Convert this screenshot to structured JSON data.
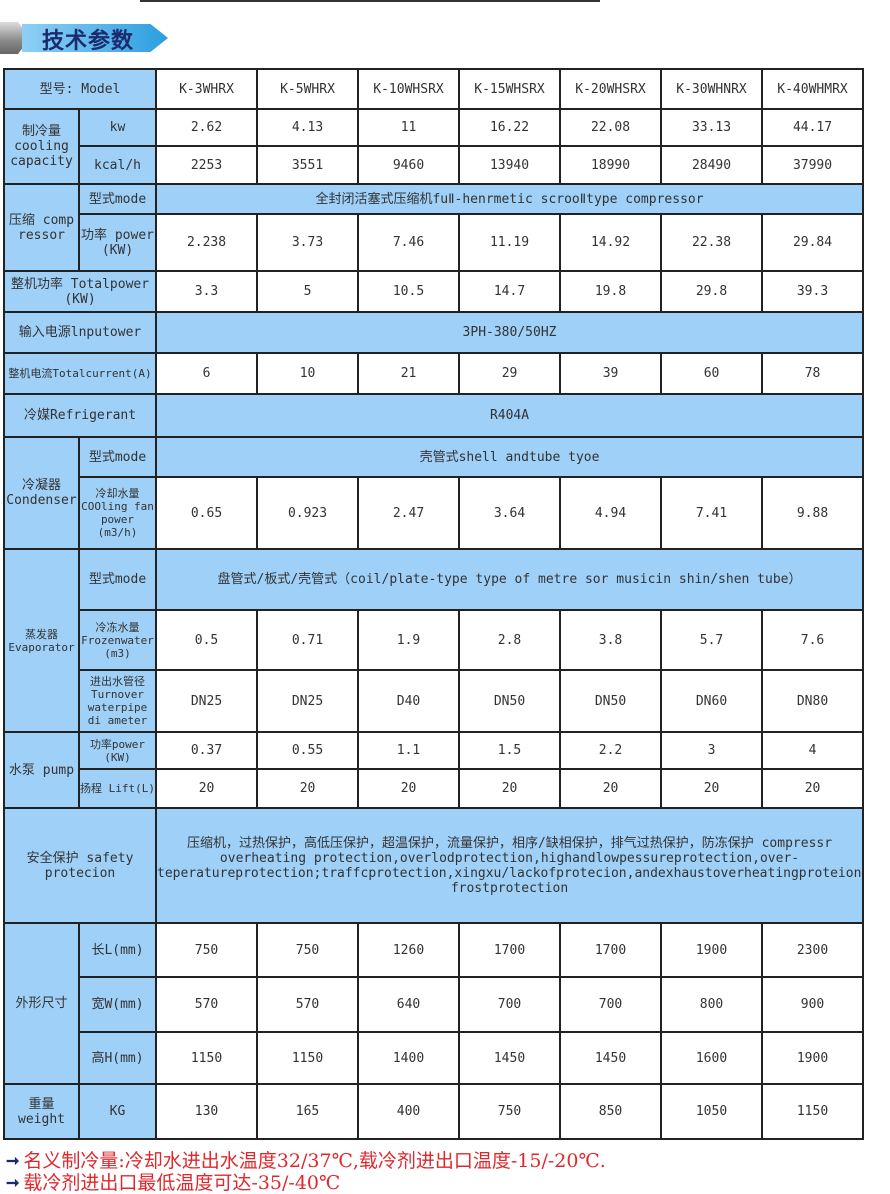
{
  "section_title": "技术参数",
  "header_label": "型号: Model",
  "models": [
    "K-3WHRX",
    "K-5WHRX",
    "K-10WHSRX",
    "K-15WHSRX",
    "K-20WHSRX",
    "K-30WHNRX",
    "K-40WHMRX"
  ],
  "cooling": {
    "label": "制冷量 cooling capacity",
    "unit_kw": "kw",
    "unit_kcal": "kcal/h",
    "kw": [
      "2.62",
      "4.13",
      "11",
      "16.22",
      "22.08",
      "33.13",
      "44.17"
    ],
    "kcal": [
      "2253",
      "3551",
      "9460",
      "13940",
      "18990",
      "28490",
      "37990"
    ]
  },
  "compressor": {
    "label": "压缩 comp ressor",
    "mode_label": "型式mode",
    "mode_value": "全封闭活塞式压缩机fuⅡ-henrmetic scrooⅡtype compressor",
    "power_label": "功率 power (KW)",
    "power": [
      "2.238",
      "3.73",
      "7.46",
      "11.19",
      "14.92",
      "22.38",
      "29.84"
    ]
  },
  "total_power": {
    "label": "整机功率 Totalpower (KW)",
    "values": [
      "3.3",
      "5",
      "10.5",
      "14.7",
      "19.8",
      "29.8",
      "39.3"
    ]
  },
  "input_power": {
    "label": "输入电源lnputower",
    "value": "3PH-380/50HZ"
  },
  "total_current": {
    "label": "整机电流Totalcurrent(A)",
    "values": [
      "6",
      "10",
      "21",
      "29",
      "39",
      "60",
      "78"
    ]
  },
  "refrigerant": {
    "label": "冷媒Refrigerant",
    "value": "R404A"
  },
  "condenser": {
    "label": "冷凝器 Condenser",
    "mode_label": "型式mode",
    "mode_value": "壳管式shell andtube tyoe",
    "water_label": "冷却水量 COOling fan power (m3/h)",
    "water": [
      "0.65",
      "0.923",
      "2.47",
      "3.64",
      "4.94",
      "7.41",
      "9.88"
    ]
  },
  "evaporator": {
    "label": "蒸发器 Evaporator",
    "mode_label": "型式mode",
    "mode_value": "盘管式/板式/壳管式（coil/plate-type type of metre sor musicin shin/shen tube）",
    "frozen_label": "冷冻水量 Frozenwater (m3)",
    "frozen": [
      "0.5",
      "0.71",
      "1.9",
      "2.8",
      "3.8",
      "5.7",
      "7.6"
    ],
    "pipe_label": "进出水管径 Turnover waterpipe di ameter",
    "pipe": [
      "DN25",
      "DN25",
      "D40",
      "DN50",
      "DN50",
      "DN60",
      "DN80"
    ]
  },
  "pump": {
    "label": "水泵 pump",
    "power_label": "功率power (KW)",
    "power": [
      "0.37",
      "0.55",
      "1.1",
      "1.5",
      "2.2",
      "3",
      "4"
    ],
    "lift_label": "扬程 Lift(L)",
    "lift": [
      "20",
      "20",
      "20",
      "20",
      "20",
      "20",
      "20"
    ]
  },
  "safety": {
    "label": "安全保护 safety protecion",
    "value": "压缩机，过热保护，高低压保护，超温保护，流量保护，相序/缺相保护，排气过热保护，防冻保护 compressr overheating protection,overlodprotection,highandlowpessureprotection,over-teperatureprotection;traffcprotection,xingxu/lackofprotecion,andexhaustoverheatingproteion,     frostprotection"
  },
  "dimensions": {
    "label": "外形尺寸",
    "l_label": "长L(mm)",
    "l": [
      "750",
      "750",
      "1260",
      "1700",
      "1700",
      "1900",
      "2300"
    ],
    "w_label": "宽W(mm)",
    "w": [
      "570",
      "570",
      "640",
      "700",
      "700",
      "800",
      "900"
    ],
    "h_label": "高H(mm)",
    "h": [
      "1150",
      "1150",
      "1400",
      "1450",
      "1450",
      "1600",
      "1900"
    ]
  },
  "weight": {
    "label": "重量 weight",
    "unit": "KG",
    "values": [
      "130",
      "165",
      "400",
      "750",
      "850",
      "1050",
      "1150"
    ]
  },
  "notes": [
    "名义制冷量:冷却水进出水温度32/37℃,载冷剂进出口温度-15/-20℃.",
    "载冷剂进出口最低温度可达-35/-40℃"
  ],
  "colors": {
    "header_blue": "#9fd0f8",
    "note_red": "#e0282c",
    "arrow_navy": "#1c2a6e"
  }
}
